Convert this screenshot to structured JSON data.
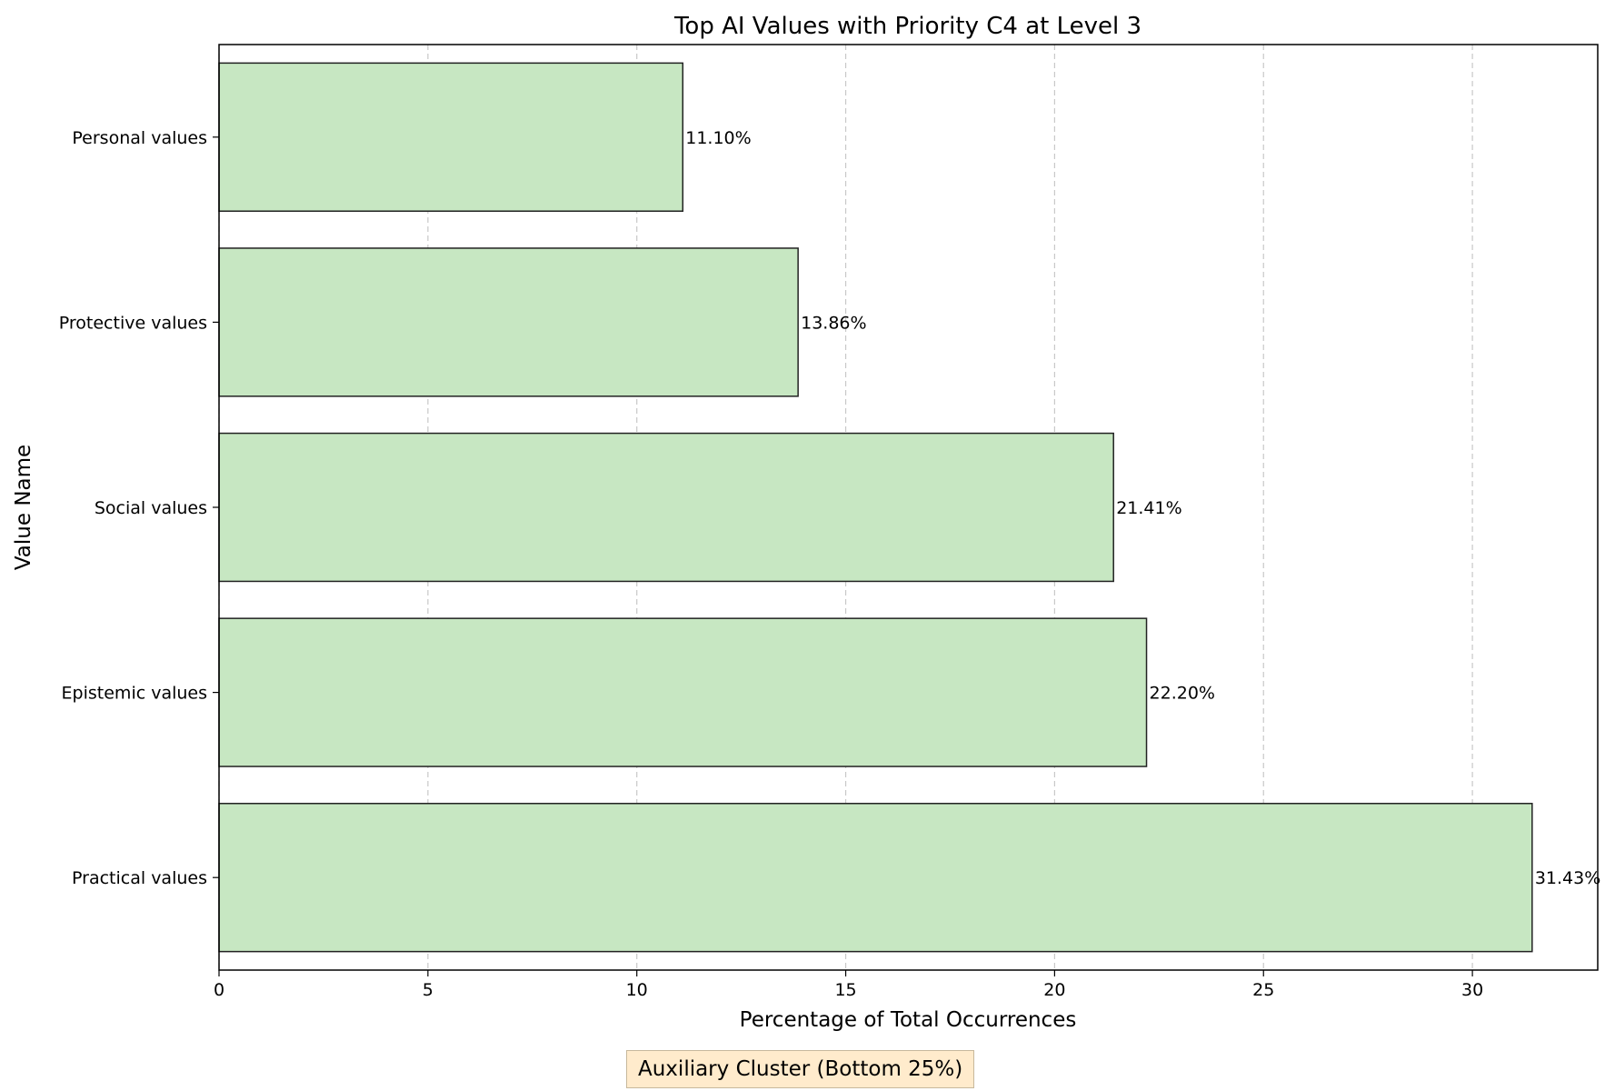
{
  "chart_data": {
    "type": "bar",
    "orientation": "horizontal",
    "title": "Top AI Values with Priority C4 at Level 3",
    "xlabel": "Percentage of Total Occurrences",
    "ylabel": "Value Name",
    "categories": [
      "Practical values",
      "Epistemic values",
      "Social values",
      "Protective values",
      "Personal values"
    ],
    "values": [
      31.43,
      22.2,
      21.41,
      13.86,
      11.1
    ],
    "data_labels": [
      "31.43%",
      "22.20%",
      "21.41%",
      "13.86%",
      "11.10%"
    ],
    "xlim": [
      0,
      33
    ],
    "xticks": [
      0,
      5,
      10,
      15,
      20,
      25,
      30
    ],
    "grid": "x-dashed",
    "bar_color": "#c7e7c2",
    "bar_edge_color": "#222222"
  },
  "footer": {
    "text": "Auxiliary Cluster (Bottom 25%)",
    "background": "#ffebcc"
  }
}
